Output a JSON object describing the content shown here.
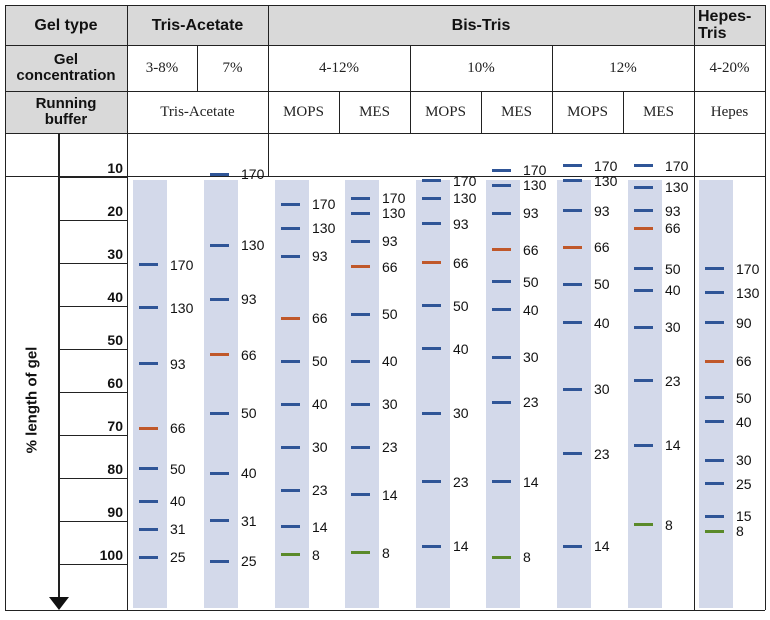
{
  "header": {
    "row_labels": {
      "gel_type": "Gel type",
      "gel_concentration": "Gel\nconcentration",
      "running_buffer": "Running\nbuffer"
    },
    "gel_types": [
      {
        "id": "tris-acetate",
        "label": "Tris-Acetate"
      },
      {
        "id": "bis-tris",
        "label": "Bis-Tris"
      },
      {
        "id": "hepes-tris",
        "label": "Hepes-\nTris"
      }
    ],
    "concentrations": [
      "3-8%",
      "7%",
      "4-12%",
      "10%",
      "12%",
      "4-20%"
    ],
    "buffers": [
      "Tris-Acetate",
      "MOPS",
      "MES",
      "MOPS",
      "MES",
      "MOPS",
      "MES",
      "Hepes"
    ]
  },
  "axis": {
    "title": "% length of gel",
    "ticks": [
      "10",
      "20",
      "30",
      "40",
      "50",
      "60",
      "70",
      "80",
      "90",
      "100"
    ]
  },
  "colors": {
    "lane": "#d3d9ea",
    "band_blue": "#2f5597",
    "band_orange": "#c0582a",
    "band_green": "#5a8a2a",
    "header_grey": "#d9d9d9"
  },
  "lanes": [
    {
      "gel": "Tris-Acetate 3-8%",
      "bands": [
        {
          "kda": "170",
          "pct": 30.5,
          "color": "blue"
        },
        {
          "kda": "130",
          "pct": 40.5,
          "color": "blue"
        },
        {
          "kda": "93",
          "pct": 53.5,
          "color": "blue"
        },
        {
          "kda": "66",
          "pct": 68.5,
          "color": "orange"
        },
        {
          "kda": "50",
          "pct": 78,
          "color": "blue"
        },
        {
          "kda": "40",
          "pct": 85.5,
          "color": "blue"
        },
        {
          "kda": "31",
          "pct": 92,
          "color": "blue"
        },
        {
          "kda": "25",
          "pct": 98.5,
          "color": "blue"
        }
      ]
    },
    {
      "gel": "Tris-Acetate 7%",
      "bands": [
        {
          "kda": "170",
          "pct": 9.5,
          "color": "blue"
        },
        {
          "kda": "130",
          "pct": 26,
          "color": "blue"
        },
        {
          "kda": "93",
          "pct": 38.5,
          "color": "blue"
        },
        {
          "kda": "66",
          "pct": 51.5,
          "color": "orange"
        },
        {
          "kda": "50",
          "pct": 65,
          "color": "blue"
        },
        {
          "kda": "40",
          "pct": 79,
          "color": "blue"
        },
        {
          "kda": "31",
          "pct": 90,
          "color": "blue"
        },
        {
          "kda": "25",
          "pct": 99.5,
          "color": "blue"
        }
      ]
    },
    {
      "gel": "Bis-Tris 4-12% MOPS",
      "bands": [
        {
          "kda": "170",
          "pct": 16.5,
          "color": "blue"
        },
        {
          "kda": "130",
          "pct": 22,
          "color": "blue"
        },
        {
          "kda": "93",
          "pct": 28.5,
          "color": "blue"
        },
        {
          "kda": "66",
          "pct": 43,
          "color": "orange"
        },
        {
          "kda": "50",
          "pct": 53,
          "color": "blue"
        },
        {
          "kda": "40",
          "pct": 63,
          "color": "blue"
        },
        {
          "kda": "30",
          "pct": 73,
          "color": "blue"
        },
        {
          "kda": "23",
          "pct": 83,
          "color": "blue"
        },
        {
          "kda": "14",
          "pct": 91.5,
          "color": "blue"
        },
        {
          "kda": "8",
          "pct": 98,
          "color": "green"
        }
      ]
    },
    {
      "gel": "Bis-Tris 4-12% MES",
      "bands": [
        {
          "kda": "170",
          "pct": 15,
          "color": "blue"
        },
        {
          "kda": "130",
          "pct": 18.5,
          "color": "blue"
        },
        {
          "kda": "93",
          "pct": 25,
          "color": "blue"
        },
        {
          "kda": "66",
          "pct": 31,
          "color": "orange"
        },
        {
          "kda": "50",
          "pct": 42,
          "color": "blue"
        },
        {
          "kda": "40",
          "pct": 53,
          "color": "blue"
        },
        {
          "kda": "30",
          "pct": 63,
          "color": "blue"
        },
        {
          "kda": "23",
          "pct": 73,
          "color": "blue"
        },
        {
          "kda": "14",
          "pct": 84,
          "color": "blue"
        },
        {
          "kda": "8",
          "pct": 97.5,
          "color": "green"
        }
      ]
    },
    {
      "gel": "Bis-Tris 10% MOPS",
      "bands": [
        {
          "kda": "170",
          "pct": 11,
          "color": "blue"
        },
        {
          "kda": "130",
          "pct": 15,
          "color": "blue"
        },
        {
          "kda": "93",
          "pct": 21,
          "color": "blue"
        },
        {
          "kda": "66",
          "pct": 30,
          "color": "orange"
        },
        {
          "kda": "50",
          "pct": 40,
          "color": "blue"
        },
        {
          "kda": "40",
          "pct": 50,
          "color": "blue"
        },
        {
          "kda": "30",
          "pct": 65,
          "color": "blue"
        },
        {
          "kda": "23",
          "pct": 81,
          "color": "blue"
        },
        {
          "kda": "14",
          "pct": 96,
          "color": "blue"
        }
      ]
    },
    {
      "gel": "Bis-Tris 10% MES",
      "bands": [
        {
          "kda": "170",
          "pct": 8.5,
          "color": "blue"
        },
        {
          "kda": "130",
          "pct": 12,
          "color": "blue"
        },
        {
          "kda": "93",
          "pct": 18.5,
          "color": "blue"
        },
        {
          "kda": "66",
          "pct": 27,
          "color": "orange"
        },
        {
          "kda": "50",
          "pct": 34.5,
          "color": "blue"
        },
        {
          "kda": "40",
          "pct": 41,
          "color": "blue"
        },
        {
          "kda": "30",
          "pct": 52,
          "color": "blue"
        },
        {
          "kda": "23",
          "pct": 62.5,
          "color": "blue"
        },
        {
          "kda": "14",
          "pct": 81,
          "color": "blue"
        },
        {
          "kda": "8",
          "pct": 98.5,
          "color": "green"
        }
      ]
    },
    {
      "gel": "Bis-Tris 12% MOPS",
      "bands": [
        {
          "kda": "170",
          "pct": 7.5,
          "color": "blue"
        },
        {
          "kda": "130",
          "pct": 11,
          "color": "blue"
        },
        {
          "kda": "93",
          "pct": 18,
          "color": "blue"
        },
        {
          "kda": "66",
          "pct": 26.5,
          "color": "orange"
        },
        {
          "kda": "50",
          "pct": 35,
          "color": "blue"
        },
        {
          "kda": "40",
          "pct": 44,
          "color": "blue"
        },
        {
          "kda": "30",
          "pct": 59.5,
          "color": "blue"
        },
        {
          "kda": "23",
          "pct": 74.5,
          "color": "blue"
        },
        {
          "kda": "14",
          "pct": 96,
          "color": "blue"
        }
      ]
    },
    {
      "gel": "Bis-Tris 12% MES",
      "bands": [
        {
          "kda": "170",
          "pct": 7.5,
          "color": "blue"
        },
        {
          "kda": "130",
          "pct": 12.5,
          "color": "blue"
        },
        {
          "kda": "93",
          "pct": 18,
          "color": "blue"
        },
        {
          "kda": "66",
          "pct": 22,
          "color": "orange"
        },
        {
          "kda": "50",
          "pct": 31.5,
          "color": "blue"
        },
        {
          "kda": "40",
          "pct": 36.5,
          "color": "blue"
        },
        {
          "kda": "30",
          "pct": 45,
          "color": "blue"
        },
        {
          "kda": "23",
          "pct": 57.5,
          "color": "blue"
        },
        {
          "kda": "14",
          "pct": 72.5,
          "color": "blue"
        },
        {
          "kda": "8",
          "pct": 91,
          "color": "green"
        }
      ]
    },
    {
      "gel": "Hepes-Tris 4-20%",
      "bands": [
        {
          "kda": "170",
          "pct": 31.5,
          "color": "blue"
        },
        {
          "kda": "130",
          "pct": 37,
          "color": "blue"
        },
        {
          "kda": "90",
          "pct": 44,
          "color": "blue"
        },
        {
          "kda": "66",
          "pct": 53,
          "color": "orange"
        },
        {
          "kda": "50",
          "pct": 61.5,
          "color": "blue"
        },
        {
          "kda": "40",
          "pct": 67,
          "color": "blue"
        },
        {
          "kda": "30",
          "pct": 76,
          "color": "blue"
        },
        {
          "kda": "25",
          "pct": 81.5,
          "color": "blue"
        },
        {
          "kda": "15",
          "pct": 89,
          "color": "blue"
        },
        {
          "kda": "8",
          "pct": 92.5,
          "color": "green"
        }
      ]
    }
  ]
}
